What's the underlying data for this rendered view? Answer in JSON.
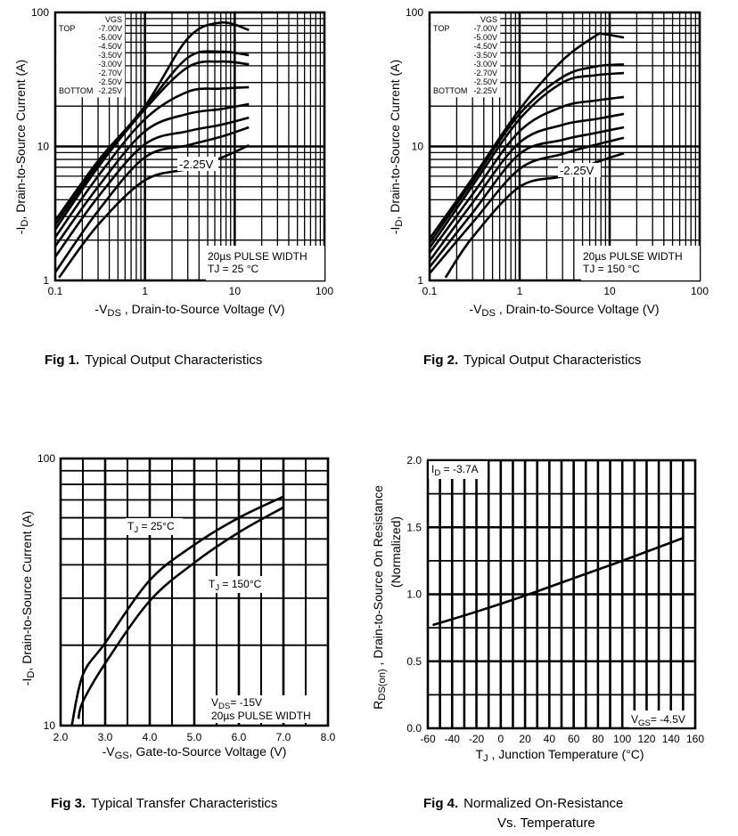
{
  "chart_data": [
    {
      "type": "line",
      "figure_label": "Fig 1.",
      "caption": "Typical Output Characteristics",
      "xscale": "log",
      "yscale": "log",
      "xlim": [
        0.1,
        100
      ],
      "ylim": [
        1,
        100
      ],
      "xticks": [
        "0.1",
        "1",
        "10",
        "100"
      ],
      "yticks": [
        "1",
        "10",
        "100"
      ],
      "xlabel": [
        {
          "t": "-V"
        },
        {
          "t": "DS",
          "sub": true
        },
        {
          "t": " , Drain-to-Source Voltage (V)"
        }
      ],
      "ylabel": [
        [
          {
            "t": "-I"
          },
          {
            "t": "D",
            "sub": true
          },
          {
            "t": ",  Drain-to-Source Current (A)"
          }
        ]
      ],
      "grid": true,
      "legend": {
        "title": "VGS",
        "top_label": "TOP",
        "bottom_label": "BOTTOM",
        "placement": "top-left",
        "entries": [
          "-7.00V",
          "-5.00V",
          "-4.50V",
          "-3.50V",
          "-3.00V",
          "-2.70V",
          "-2.50V",
          "-2.25V"
        ]
      },
      "annotations": [
        [
          [
            {
              "t": "-2.25V"
            }
          ]
        ],
        [
          [
            {
              "t": "20µs PULSE WIDTH"
            }
          ],
          [
            {
              "t": "TJ = 25 °C"
            }
          ]
        ]
      ],
      "series": [
        {
          "name": "-7.00V",
          "x": [
            0.1,
            0.3,
            1,
            3,
            7,
            14.4
          ],
          "y": [
            2.8,
            7.8,
            20,
            64,
            84,
            74
          ]
        },
        {
          "name": "-5.00V",
          "x": [
            0.1,
            0.3,
            1,
            3,
            7,
            14.4
          ],
          "y": [
            2.6,
            7.4,
            19.5,
            46,
            51,
            48
          ]
        },
        {
          "name": "-4.50V",
          "x": [
            0.1,
            0.3,
            1,
            3,
            7,
            14.4
          ],
          "y": [
            2.4,
            7.0,
            19,
            39,
            43,
            41
          ]
        },
        {
          "name": "-3.50V",
          "x": [
            0.1,
            0.3,
            1,
            3,
            7,
            14.4
          ],
          "y": [
            2.1,
            6.0,
            16,
            25.6,
            27,
            27.7
          ]
        },
        {
          "name": "-3.00V",
          "x": [
            0.1,
            0.3,
            1,
            3,
            7,
            14.4
          ],
          "y": [
            1.8,
            5.0,
            13,
            17.5,
            19,
            20.7
          ]
        },
        {
          "name": "-2.70V",
          "x": [
            0.1,
            0.3,
            1,
            3,
            7,
            14.4
          ],
          "y": [
            1.5,
            4.2,
            10.4,
            13,
            14.5,
            16.4
          ]
        },
        {
          "name": "-2.50V",
          "x": [
            0.1,
            0.3,
            1,
            3,
            7,
            14.4
          ],
          "y": [
            1.15,
            3.3,
            8.3,
            10.2,
            11.8,
            13.9
          ]
        },
        {
          "name": "-2.25V",
          "x": [
            0.11,
            0.3,
            1,
            3,
            7,
            14.4
          ],
          "y": [
            1.05,
            2.6,
            5.6,
            6.8,
            8.2,
            10.2
          ]
        }
      ]
    },
    {
      "type": "line",
      "figure_label": "Fig 2.",
      "caption": "Typical Output Characteristics",
      "xscale": "log",
      "yscale": "log",
      "xlim": [
        0.1,
        100
      ],
      "ylim": [
        1,
        100
      ],
      "xticks": [
        "0.1",
        "1",
        "10",
        "100"
      ],
      "yticks": [
        "1",
        "10",
        "100"
      ],
      "xlabel": [
        {
          "t": "-V"
        },
        {
          "t": "DS",
          "sub": true
        },
        {
          "t": " , Drain-to-Source Voltage (V)"
        }
      ],
      "ylabel": [
        [
          {
            "t": "-I"
          },
          {
            "t": "D",
            "sub": true
          },
          {
            "t": ",  Drain-to-Source Current (A)"
          }
        ]
      ],
      "grid": true,
      "legend": {
        "title": "VGS",
        "top_label": "TOP",
        "bottom_label": "BOTTOM",
        "placement": "top-left",
        "entries": [
          "-7.00V",
          "-5.00V",
          "-4.50V",
          "-3.50V",
          "-3.00V",
          "-2.70V",
          "-2.50V",
          "-2.25V"
        ]
      },
      "annotations": [
        [
          [
            {
              "t": "-2.25V"
            }
          ]
        ],
        [
          [
            {
              "t": "20µs PULSE WIDTH"
            }
          ],
          [
            {
              "t": "TJ = 150 °C"
            }
          ]
        ]
      ],
      "series": [
        {
          "name": "-7.00V",
          "x": [
            0.1,
            0.3,
            1,
            3,
            7,
            8.5,
            14.4
          ],
          "y": [
            2.05,
            5.8,
            18.9,
            44,
            67,
            69,
            65
          ]
        },
        {
          "name": "-5.00V",
          "x": [
            0.1,
            0.3,
            1,
            3,
            7,
            14.4
          ],
          "y": [
            1.9,
            5.5,
            17.5,
            33,
            39.5,
            41
          ]
        },
        {
          "name": "-4.50V",
          "x": [
            0.1,
            0.3,
            1,
            3,
            7,
            14.4
          ],
          "y": [
            1.75,
            5.1,
            16,
            30,
            34,
            35.3
          ]
        },
        {
          "name": "-3.50V",
          "x": [
            0.1,
            0.3,
            1,
            3,
            7,
            14.4
          ],
          "y": [
            1.6,
            4.4,
            13,
            19.8,
            22,
            23.4
          ]
        },
        {
          "name": "-3.00V",
          "x": [
            0.1,
            0.3,
            1,
            3,
            7,
            14.4
          ],
          "y": [
            1.4,
            3.8,
            10.7,
            14.5,
            16,
            17.5
          ]
        },
        {
          "name": "-2.70V",
          "x": [
            0.1,
            0.3,
            1,
            3,
            7,
            14.4
          ],
          "y": [
            1.26,
            3.2,
            8.8,
            11.2,
            12.6,
            13.9
          ]
        },
        {
          "name": "-2.50V",
          "x": [
            0.1,
            0.3,
            1,
            3,
            7,
            14.4
          ],
          "y": [
            1.13,
            2.7,
            6.8,
            8.8,
            10.3,
            11.6
          ]
        },
        {
          "name": "-2.25V",
          "x": [
            0.15,
            0.3,
            1,
            3,
            7,
            14.4
          ],
          "y": [
            1.05,
            2.1,
            5.0,
            6.0,
            7.6,
            8.9
          ]
        }
      ]
    },
    {
      "type": "line",
      "figure_label": "Fig 3.",
      "caption": "Typical Transfer Characteristics",
      "xscale": "linear",
      "yscale": "log",
      "xlim": [
        2.0,
        8.0
      ],
      "ylim": [
        10,
        100
      ],
      "xticks": [
        "2.0",
        "3.0",
        "4.0",
        "5.0",
        "6.0",
        "7.0",
        "8.0"
      ],
      "yticks": [
        "10",
        "100"
      ],
      "xlabel": [
        {
          "t": "-V"
        },
        {
          "t": "GS",
          "sub": true
        },
        {
          "t": ", Gate-to-Source Voltage (V)"
        }
      ],
      "ylabel": [
        [
          {
            "t": "-I"
          },
          {
            "t": "D",
            "sub": true
          },
          {
            "t": ",  Drain-to-Source Current (A)"
          }
        ]
      ],
      "grid": true,
      "annotations": [
        [
          [
            {
              "t": "T"
            },
            {
              "t": "J",
              "sub": true
            },
            {
              "t": " = 25°C"
            }
          ]
        ],
        [
          [
            {
              "t": "T"
            },
            {
              "t": "J",
              "sub": true
            },
            {
              "t": " = 150°C"
            }
          ]
        ],
        [
          [
            {
              "t": "V"
            },
            {
              "t": "DS",
              "sub": true
            },
            {
              "t": "= -15V"
            }
          ],
          [
            {
              "t": "20µs PULSE WIDTH"
            }
          ]
        ]
      ],
      "series": [
        {
          "name": "TJ = 25°C",
          "x": [
            2.25,
            2.5,
            3,
            4,
            5,
            6,
            7
          ],
          "y": [
            10,
            15.5,
            20.4,
            35,
            47.5,
            60,
            72
          ]
        },
        {
          "name": "TJ = 150°C",
          "x": [
            2.4,
            2.5,
            3,
            4,
            5,
            6,
            7
          ],
          "y": [
            10.6,
            12.3,
            17.1,
            29.3,
            40.7,
            52.9,
            65.6
          ]
        }
      ]
    },
    {
      "type": "line",
      "figure_label": "Fig 4.",
      "caption": "Normalized On-Resistance",
      "caption_line2": "Vs. Temperature",
      "xscale": "linear",
      "yscale": "linear",
      "xlim": [
        -60,
        160
      ],
      "ylim": [
        0.0,
        2.0
      ],
      "xticks": [
        "-60",
        "-40",
        "-20",
        "0",
        "20",
        "40",
        "60",
        "80",
        "100",
        "120",
        "140",
        "160"
      ],
      "yticks": [
        "0.0",
        "0.5",
        "1.0",
        "1.5",
        "2.0"
      ],
      "xlabel": [
        {
          "t": "T"
        },
        {
          "t": "J",
          "sub": true
        },
        {
          "t": " , Junction Temperature  (°C)"
        }
      ],
      "ylabel": [
        [
          {
            "t": "R"
          },
          {
            "t": "DS(on)",
            "sub": true
          },
          {
            "t": " ,  Drain-to-Source On Resistance"
          }
        ],
        [
          {
            "t": "(Normalized)"
          }
        ]
      ],
      "grid": true,
      "annotations": [
        [
          [
            {
              "t": "I"
            },
            {
              "t": "D",
              "sub": true
            },
            {
              "t": " = -3.7A"
            }
          ]
        ],
        [
          [
            {
              "t": "V"
            },
            {
              "t": "GS",
              "sub": true
            },
            {
              "t": "= -4.5V"
            }
          ]
        ]
      ],
      "series": [
        {
          "x": [
            -56,
            -20,
            20,
            60,
            100,
            150
          ],
          "y": [
            0.77,
            0.87,
            0.99,
            1.12,
            1.25,
            1.42
          ]
        }
      ]
    }
  ]
}
